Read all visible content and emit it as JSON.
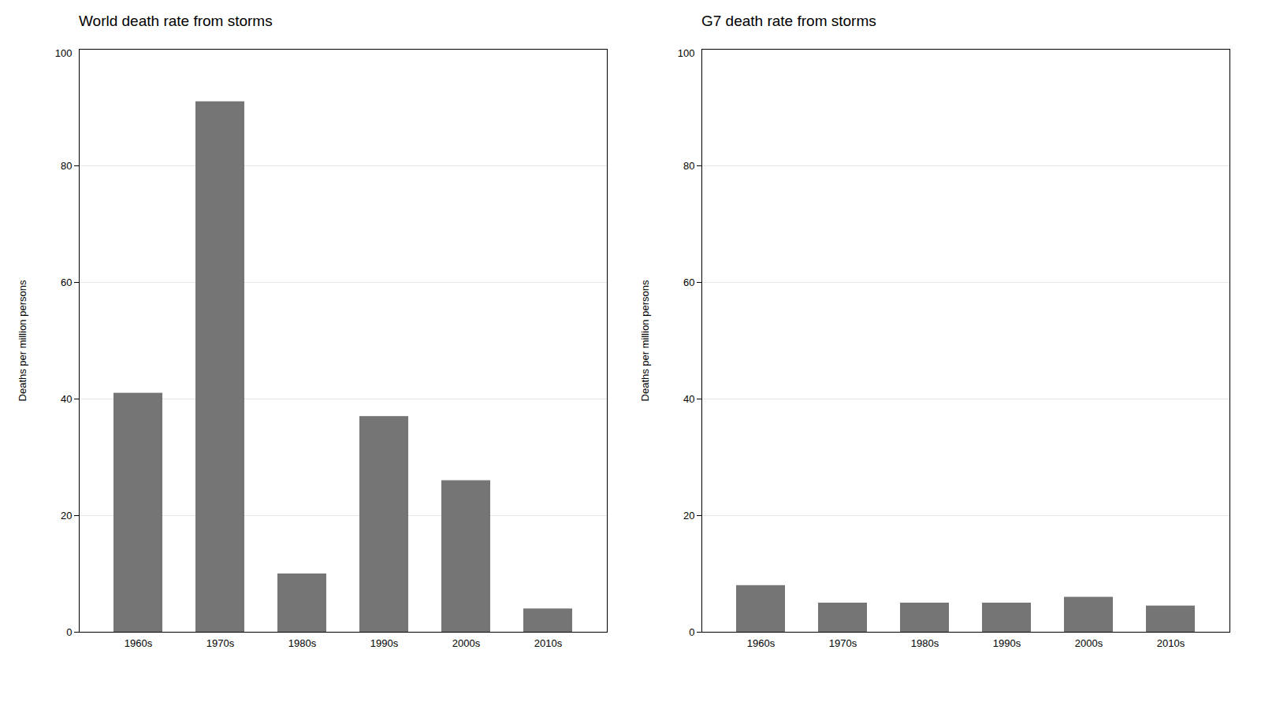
{
  "chart_data": [
    {
      "type": "bar",
      "title": "World death rate from storms",
      "annotations": [
        "100"
      ],
      "categories": [
        "1960s",
        "1970s",
        "1980s",
        "1990s",
        "2000s",
        "2010s"
      ],
      "values": [
        41,
        91,
        10,
        37,
        26,
        4
      ],
      "color": "#757575",
      "ylabel": "Deaths per million persons",
      "ylim": [
        0,
        100
      ],
      "yticks": [
        0,
        20,
        40,
        60,
        80
      ],
      "grid": true
    },
    {
      "type": "bar",
      "title": "G7 death rate from storms",
      "annotations": [
        "100"
      ],
      "categories": [
        "1960s",
        "1970s",
        "1980s",
        "1990s",
        "2000s",
        "2010s"
      ],
      "values": [
        8,
        5,
        5,
        5,
        6,
        4.5
      ],
      "color": "#757575",
      "ylabel": "Deaths per million persons",
      "ylim": [
        0,
        100
      ],
      "yticks": [
        0,
        20,
        40,
        60,
        80
      ],
      "grid": true
    }
  ]
}
